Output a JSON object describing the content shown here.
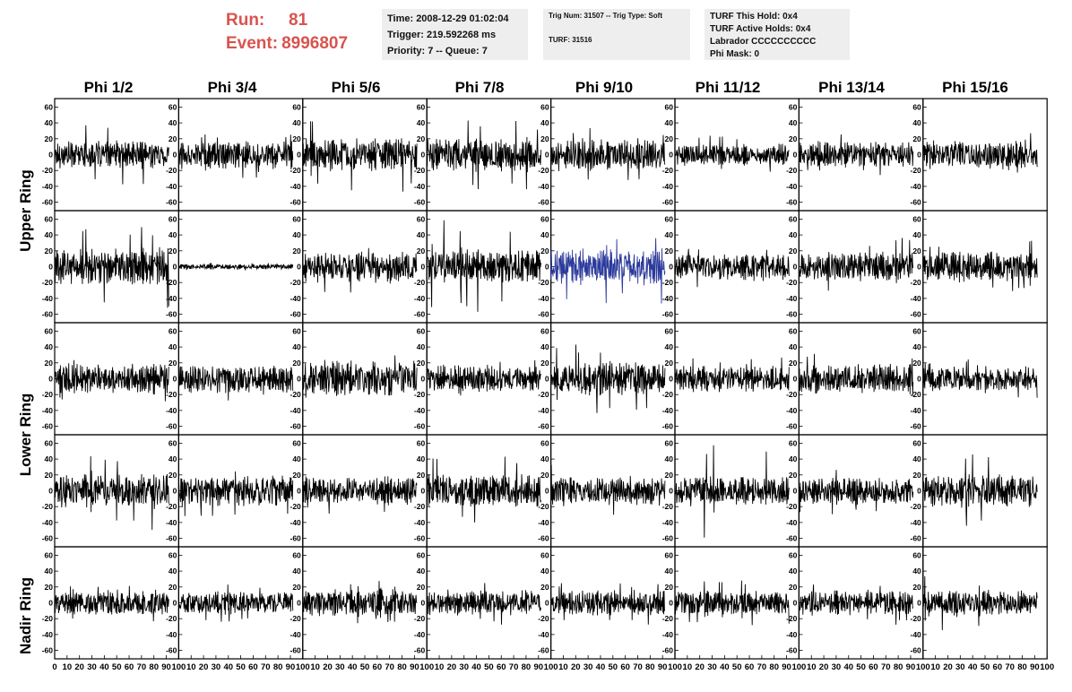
{
  "header": {
    "run_label": "Run:",
    "run_value": "81",
    "event_label": "Event:",
    "event_value": "8996807"
  },
  "time_box": {
    "time": "Time: 2008-12-29 01:02:04",
    "trigger": "Trigger: 219.592268 ms",
    "priority": "Priority: 7 -- Queue: 7"
  },
  "trig_box": {
    "trig": "Trig Num: 31507 -- Trig Type: Soft",
    "turf": "TURF: 31516"
  },
  "turf_box": {
    "this_hold": "TURF This Hold: 0x4",
    "active_holds": "TURF Active Holds: 0x4",
    "labrador": "Labrador CCCCCCCCCC",
    "phi_mask": "Phi Mask: 0"
  },
  "columns": [
    "Phi 1/2",
    "Phi 3/4",
    "Phi 5/6",
    "Phi 7/8",
    "Phi 9/10",
    "Phi 11/12",
    "Phi 13/14",
    "Phi 15/16"
  ],
  "row_labels": [
    {
      "label": "Upper Ring",
      "rows": [
        0,
        1
      ]
    },
    {
      "label": "Lower Ring",
      "rows": [
        2,
        3
      ]
    },
    {
      "label": "Nadir Ring",
      "rows": [
        4
      ]
    }
  ],
  "colors": {
    "run_text": "#d9534f",
    "trace": "#000000",
    "highlight_trace": "#2b3a9b",
    "box_bg": "#eeeeee"
  },
  "chart_data": {
    "type": "line",
    "grid": false,
    "x_range": [
      0,
      100
    ],
    "y_range": [
      -65,
      65
    ],
    "y_ticks": [
      60,
      40,
      20,
      0,
      -20,
      -40,
      -60
    ],
    "y_tick_labels": [
      "60",
      "40",
      "20",
      "0",
      "-20",
      "-40",
      "-60"
    ],
    "x_ticks": [
      0,
      10,
      20,
      30,
      40,
      50,
      60,
      70,
      80,
      90,
      100
    ],
    "x_tick_labels": [
      "0",
      "10",
      "20",
      "30",
      "40",
      "50",
      "60",
      "70",
      "80",
      "90",
      "100"
    ],
    "n_rows": 5,
    "n_cols": 8,
    "panels": [
      {
        "row": 0,
        "col": 0,
        "amp": 11,
        "peak": 38,
        "color": "trace"
      },
      {
        "row": 0,
        "col": 1,
        "amp": 11,
        "peak": 30,
        "color": "trace"
      },
      {
        "row": 0,
        "col": 2,
        "amp": 13,
        "peak": 48,
        "color": "trace"
      },
      {
        "row": 0,
        "col": 3,
        "amp": 13,
        "peak": 45,
        "color": "trace"
      },
      {
        "row": 0,
        "col": 4,
        "amp": 13,
        "peak": 35,
        "color": "trace"
      },
      {
        "row": 0,
        "col": 5,
        "amp": 9,
        "peak": 25,
        "color": "trace"
      },
      {
        "row": 0,
        "col": 6,
        "amp": 10,
        "peak": 27,
        "color": "trace"
      },
      {
        "row": 0,
        "col": 7,
        "amp": 12,
        "peak": 30,
        "color": "trace"
      },
      {
        "row": 1,
        "col": 0,
        "amp": 15,
        "peak": 53,
        "color": "trace"
      },
      {
        "row": 1,
        "col": 1,
        "amp": 2,
        "peak": 5,
        "color": "trace"
      },
      {
        "row": 1,
        "col": 2,
        "amp": 13,
        "peak": 33,
        "color": "trace"
      },
      {
        "row": 1,
        "col": 3,
        "amp": 13,
        "peak": 60,
        "color": "trace"
      },
      {
        "row": 1,
        "col": 4,
        "amp": 14,
        "peak": 48,
        "color": "highlight_trace"
      },
      {
        "row": 1,
        "col": 5,
        "amp": 11,
        "peak": 30,
        "color": "trace"
      },
      {
        "row": 1,
        "col": 6,
        "amp": 12,
        "peak": 37,
        "color": "trace"
      },
      {
        "row": 1,
        "col": 7,
        "amp": 12,
        "peak": 35,
        "color": "trace"
      },
      {
        "row": 2,
        "col": 0,
        "amp": 12,
        "peak": 32,
        "color": "trace"
      },
      {
        "row": 2,
        "col": 1,
        "amp": 12,
        "peak": 30,
        "color": "trace"
      },
      {
        "row": 2,
        "col": 2,
        "amp": 15,
        "peak": 42,
        "color": "trace"
      },
      {
        "row": 2,
        "col": 3,
        "amp": 11,
        "peak": 30,
        "color": "trace"
      },
      {
        "row": 2,
        "col": 4,
        "amp": 13,
        "peak": 45,
        "color": "trace"
      },
      {
        "row": 2,
        "col": 5,
        "amp": 11,
        "peak": 28,
        "color": "trace"
      },
      {
        "row": 2,
        "col": 6,
        "amp": 12,
        "peak": 33,
        "color": "trace"
      },
      {
        "row": 2,
        "col": 7,
        "amp": 10,
        "peak": 25,
        "color": "trace"
      },
      {
        "row": 3,
        "col": 0,
        "amp": 14,
        "peak": 52,
        "color": "trace"
      },
      {
        "row": 3,
        "col": 1,
        "amp": 13,
        "peak": 32,
        "color": "trace"
      },
      {
        "row": 3,
        "col": 2,
        "amp": 11,
        "peak": 30,
        "color": "trace"
      },
      {
        "row": 3,
        "col": 3,
        "amp": 13,
        "peak": 43,
        "color": "trace"
      },
      {
        "row": 3,
        "col": 4,
        "amp": 12,
        "peak": 35,
        "color": "trace"
      },
      {
        "row": 3,
        "col": 5,
        "amp": 12,
        "peak": 60,
        "color": "trace"
      },
      {
        "row": 3,
        "col": 6,
        "amp": 11,
        "peak": 30,
        "color": "trace"
      },
      {
        "row": 3,
        "col": 7,
        "amp": 13,
        "peak": 48,
        "color": "trace"
      },
      {
        "row": 4,
        "col": 0,
        "amp": 10,
        "peak": 28,
        "color": "trace"
      },
      {
        "row": 4,
        "col": 1,
        "amp": 9,
        "peak": 25,
        "color": "trace"
      },
      {
        "row": 4,
        "col": 2,
        "amp": 11,
        "peak": 28,
        "color": "trace"
      },
      {
        "row": 4,
        "col": 3,
        "amp": 10,
        "peak": 28,
        "color": "trace"
      },
      {
        "row": 4,
        "col": 4,
        "amp": 10,
        "peak": 28,
        "color": "trace"
      },
      {
        "row": 4,
        "col": 5,
        "amp": 10,
        "peak": 30,
        "color": "trace"
      },
      {
        "row": 4,
        "col": 6,
        "amp": 10,
        "peak": 28,
        "color": "trace"
      },
      {
        "row": 4,
        "col": 7,
        "amp": 11,
        "peak": 40,
        "color": "trace"
      }
    ]
  }
}
